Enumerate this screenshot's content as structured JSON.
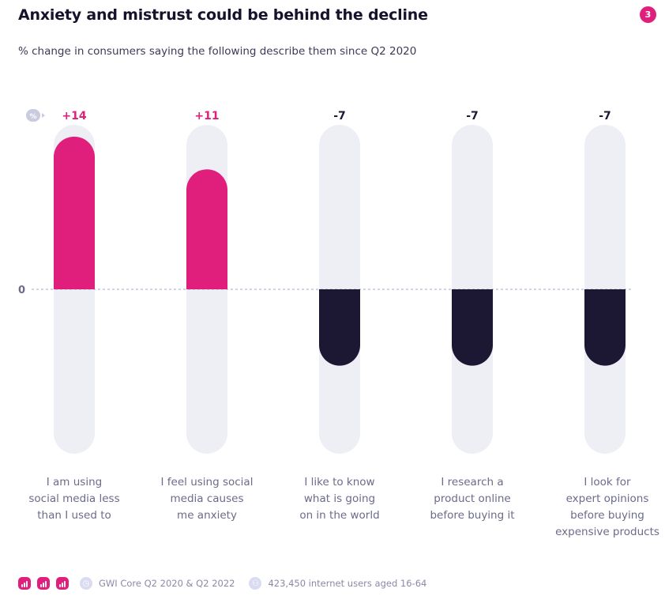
{
  "header": {
    "title": "Anxiety and mistrust could be behind the decline",
    "badge": "3",
    "subtitle": "% change in consumers saying the following describe them since Q2 2020"
  },
  "chart_data": {
    "type": "bar",
    "title": "Anxiety and mistrust could be behind the decline",
    "subtitle": "% change in consumers saying the following describe them since Q2 2020",
    "unit_badge": "%",
    "zero_label": "0",
    "categories": [
      "I am using social media less than I used to",
      "I feel using social media causes me anxiety",
      "I like to know what is going on in the world",
      "I research a product online before buying it",
      "I look for expert opinions before buying expensive products"
    ],
    "category_lines": [
      [
        "I am using",
        "social media less",
        "than I used to"
      ],
      [
        "I feel using social",
        "media causes",
        "me anxiety"
      ],
      [
        "I like to know",
        "what is going",
        "on in the world"
      ],
      [
        "I research a",
        "product online",
        "before buying it"
      ],
      [
        "I look for",
        "expert opinions",
        "before buying",
        "expensive products"
      ]
    ],
    "values": [
      14,
      11,
      -7,
      -7,
      -7
    ],
    "value_labels": [
      "+14",
      "+11",
      "-7",
      "-7",
      "-7"
    ],
    "ylim": [
      -15,
      15
    ],
    "grid": false,
    "colors": {
      "positive": "#e01f7c",
      "negative": "#1c1733",
      "track": "#eeeff5",
      "zero_line": "#b9bbd0"
    }
  },
  "footer": {
    "source": "GWI Core Q2 2020 & Q2 2022",
    "sample": "423,450 internet users aged 16-64",
    "icons": [
      "bar-chart-icon",
      "bar-chart-icon",
      "bar-chart-icon",
      "clock-icon",
      "people-icon"
    ]
  }
}
